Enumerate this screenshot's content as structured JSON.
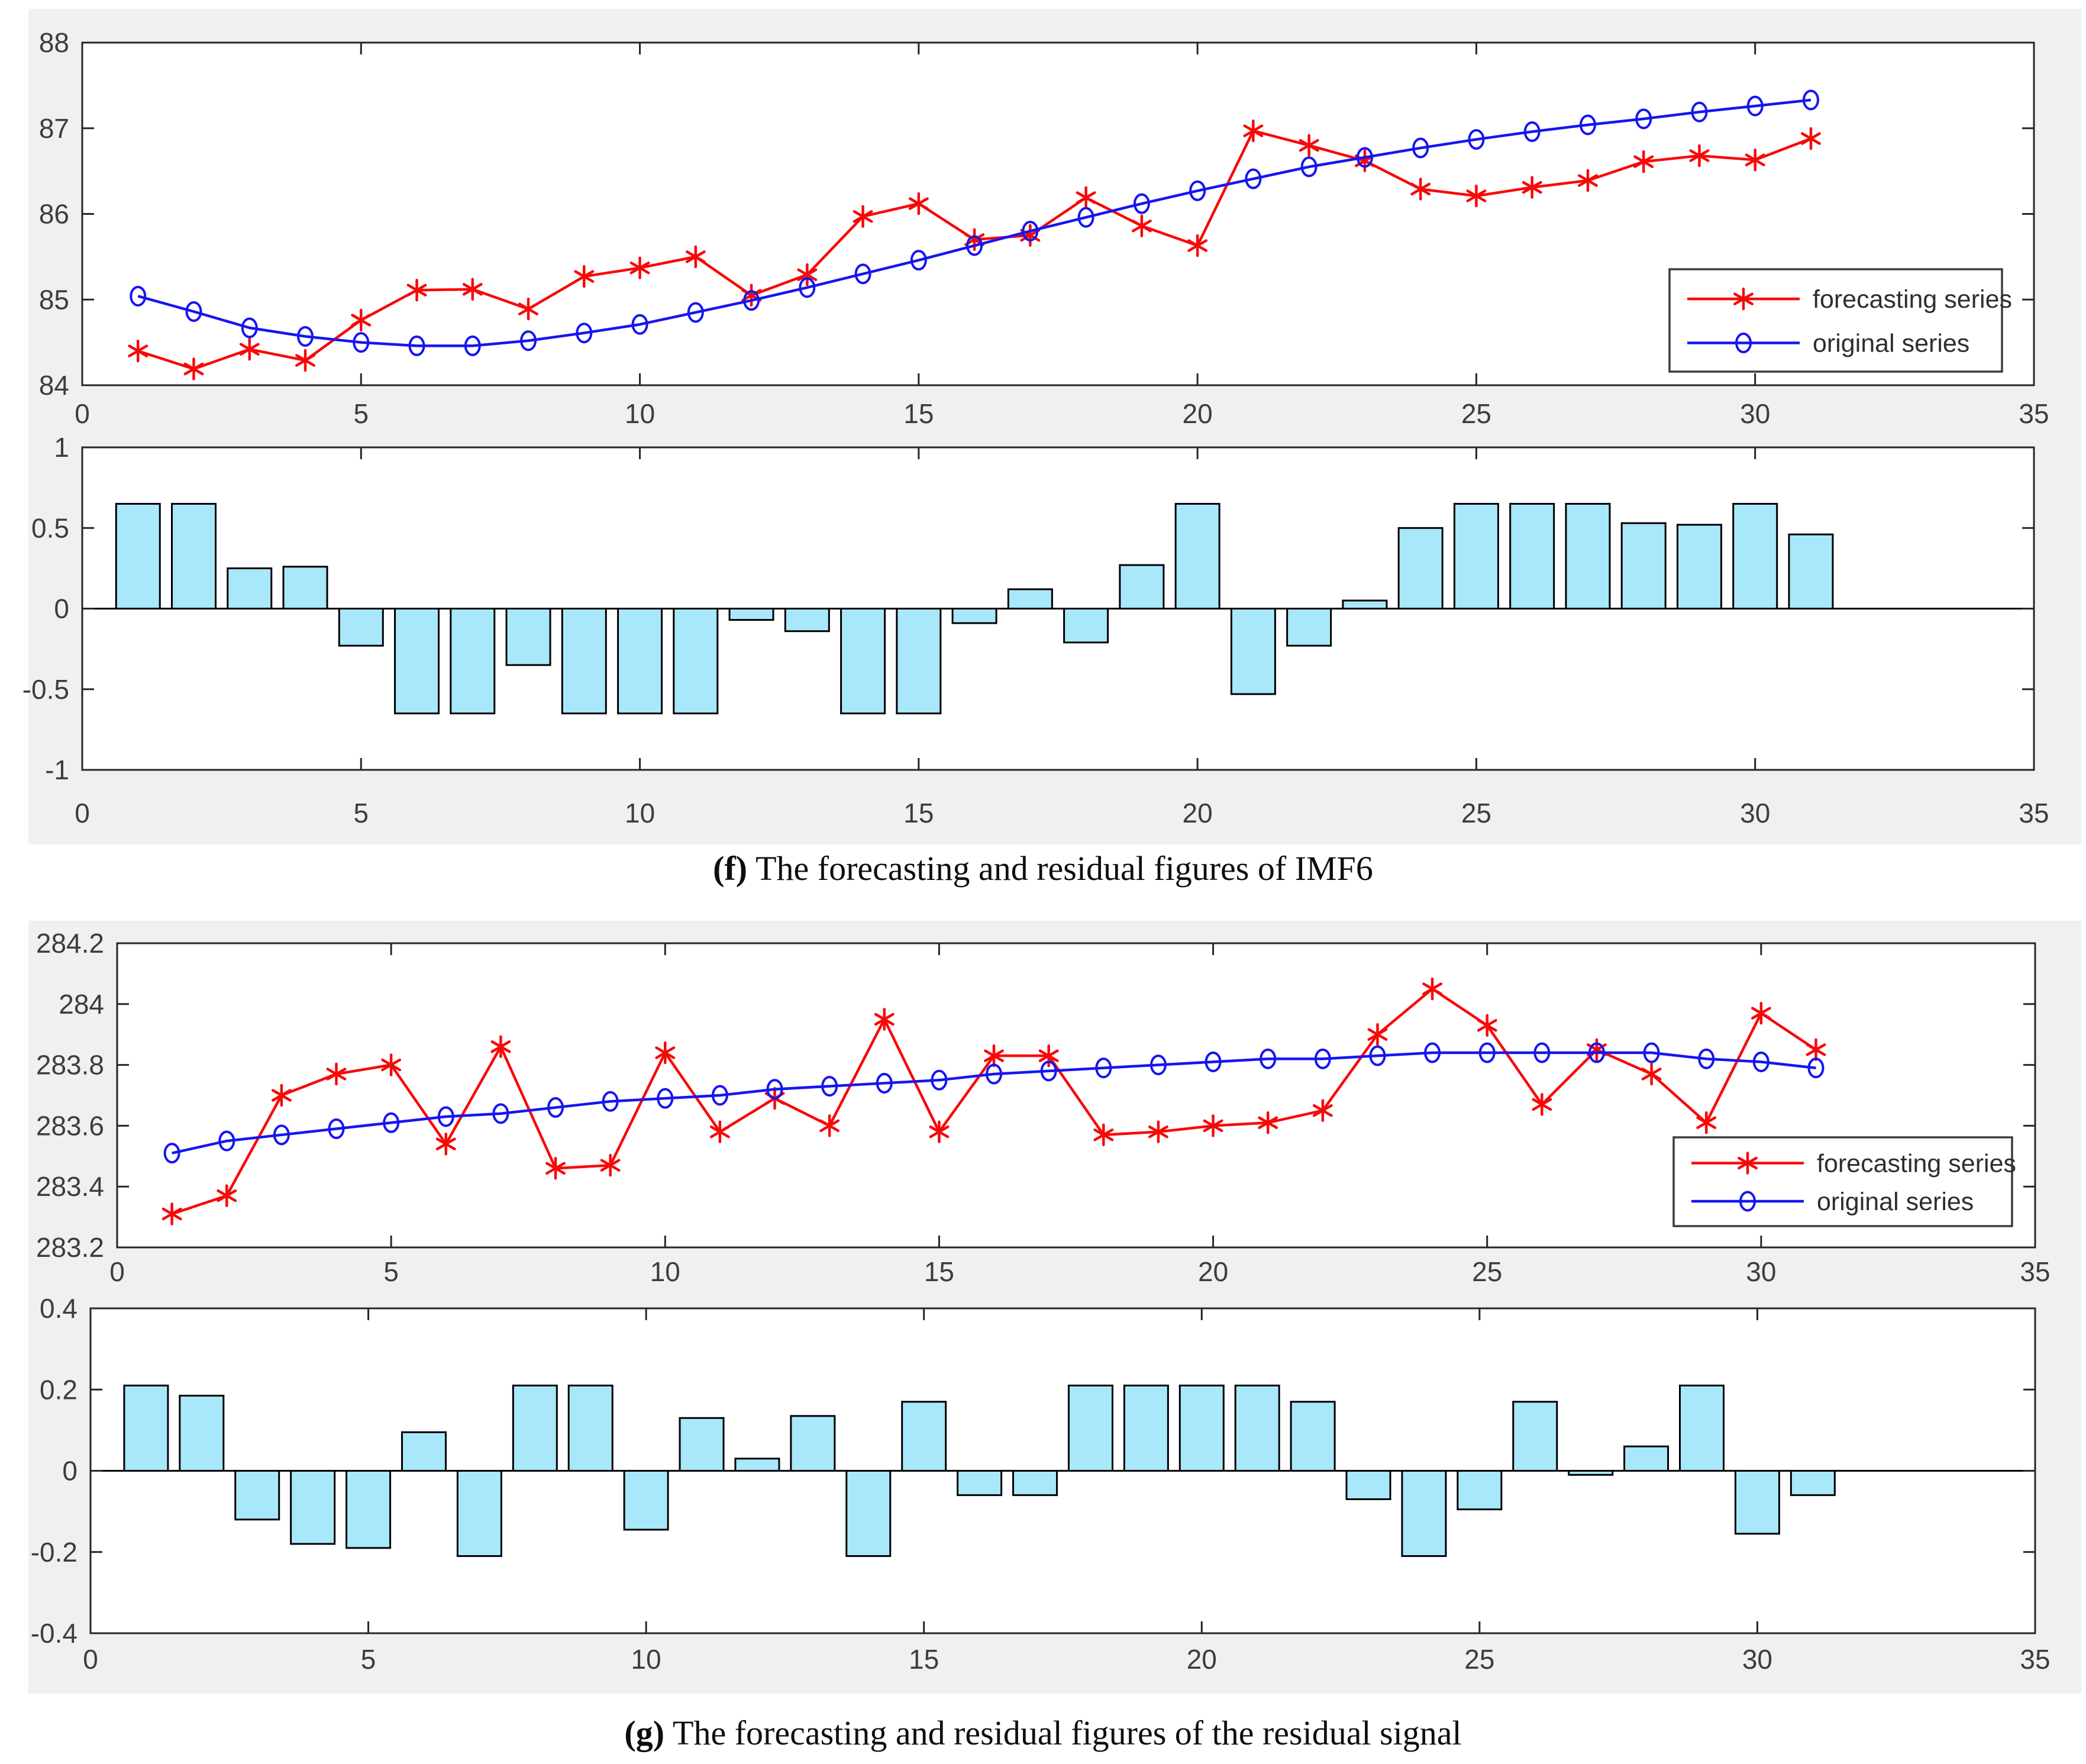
{
  "colors": {
    "forecasting_series": "#f80909",
    "original_series": "#1515f2",
    "residual_bar_fill": "#a9e7fa",
    "bar_edge": "#000000",
    "panel_background": "#f0f0f0",
    "plot_background": "#ffffff",
    "axis_frame": "#262626",
    "tick_label": "#3d3d3d",
    "legend_text": "#2e2e2e",
    "caption_text": "#0e0e0e"
  },
  "figures": [
    {
      "id": "f",
      "caption_label": "(f)",
      "caption_text": "The forecasting and residual figures of IMF6"
    },
    {
      "id": "g",
      "caption_label": "(g)",
      "caption_text": "The forecasting and residual figures of the residual signal"
    }
  ],
  "chart_data": [
    {
      "id": "f_line",
      "figure": "f",
      "type": "line",
      "x_start": 1,
      "x_step": 1,
      "xlim": [
        0,
        35
      ],
      "ylim": [
        84,
        88
      ],
      "xticks": [
        "0",
        "5",
        "10",
        "15",
        "20",
        "25",
        "30",
        "35"
      ],
      "yticks": [
        "84",
        "85",
        "86",
        "87",
        "88"
      ],
      "grid": false,
      "legend_position": "right-inside",
      "series": [
        {
          "name": "forecasting series",
          "marker": "asterisk",
          "color_key": "forecasting_series",
          "values": [
            84.4,
            84.19,
            84.42,
            84.29,
            84.76,
            85.11,
            85.12,
            84.89,
            85.27,
            85.37,
            85.5,
            85.05,
            85.29,
            85.97,
            86.12,
            85.7,
            85.75,
            86.19,
            85.86,
            85.63,
            86.97,
            86.8,
            86.62,
            86.29,
            86.21,
            86.31,
            86.39,
            86.61,
            86.68,
            86.63,
            86.88
          ]
        },
        {
          "name": "original series",
          "marker": "circle",
          "color_key": "original_series",
          "values": [
            85.04,
            84.86,
            84.67,
            84.57,
            84.5,
            84.46,
            84.46,
            84.52,
            84.61,
            84.71,
            84.85,
            84.99,
            85.14,
            85.3,
            85.46,
            85.63,
            85.8,
            85.96,
            86.12,
            86.27,
            86.41,
            86.55,
            86.66,
            86.77,
            86.87,
            86.96,
            87.04,
            87.11,
            87.19,
            87.26,
            87.33
          ]
        }
      ]
    },
    {
      "id": "f_bar",
      "figure": "f",
      "type": "bar",
      "x_start": 1,
      "x_step": 1,
      "xlim": [
        0,
        35
      ],
      "ylim": [
        -1,
        1
      ],
      "xticks": [
        "0",
        "5",
        "10",
        "15",
        "20",
        "25",
        "30",
        "35"
      ],
      "yticks": [
        "-1",
        "-0.5",
        "0",
        "0.5",
        "1"
      ],
      "grid": false,
      "color_key": "residual_bar_fill",
      "values": [
        0.65,
        0.65,
        0.25,
        0.26,
        -0.23,
        -0.65,
        -0.65,
        -0.35,
        -0.65,
        -0.65,
        -0.65,
        -0.07,
        -0.14,
        -0.65,
        -0.65,
        -0.09,
        0.12,
        -0.21,
        0.27,
        0.65,
        -0.53,
        -0.23,
        0.05,
        0.5,
        0.65,
        0.65,
        0.65,
        0.53,
        0.52,
        0.65,
        0.46
      ]
    },
    {
      "id": "g_line",
      "figure": "g",
      "type": "line",
      "x_start": 1,
      "x_step": 1,
      "xlim": [
        0,
        35
      ],
      "ylim": [
        283.2,
        284.2
      ],
      "xticks": [
        "0",
        "5",
        "10",
        "15",
        "20",
        "25",
        "30",
        "35"
      ],
      "yticks": [
        "283.2",
        "283.4",
        "283.6",
        "283.8",
        "284",
        "284.2"
      ],
      "grid": false,
      "legend_position": "lower-right-inside",
      "series": [
        {
          "name": "forecasting series",
          "marker": "asterisk",
          "color_key": "forecasting_series",
          "values": [
            283.31,
            283.37,
            283.7,
            283.77,
            283.8,
            283.54,
            283.86,
            283.46,
            283.47,
            283.84,
            283.58,
            283.69,
            283.6,
            283.95,
            283.58,
            283.83,
            283.83,
            283.57,
            283.58,
            283.6,
            283.61,
            283.65,
            283.9,
            284.05,
            283.93,
            283.67,
            283.85,
            283.77,
            283.61,
            283.97,
            283.85
          ]
        },
        {
          "name": "original series",
          "marker": "circle",
          "color_key": "original_series",
          "values": [
            283.51,
            283.55,
            283.57,
            283.59,
            283.61,
            283.63,
            283.64,
            283.66,
            283.68,
            283.69,
            283.7,
            283.72,
            283.73,
            283.74,
            283.75,
            283.77,
            283.78,
            283.79,
            283.8,
            283.81,
            283.82,
            283.82,
            283.83,
            283.84,
            283.84,
            283.84,
            283.84,
            283.84,
            283.82,
            283.81,
            283.79
          ]
        }
      ]
    },
    {
      "id": "g_bar",
      "figure": "g",
      "type": "bar",
      "x_start": 1,
      "x_step": 1,
      "xlim": [
        0,
        35
      ],
      "ylim": [
        -0.4,
        0.4
      ],
      "xticks": [
        "0",
        "5",
        "10",
        "15",
        "20",
        "25",
        "30",
        "35"
      ],
      "yticks": [
        "-0.4",
        "-0.2",
        "0",
        "0.2",
        "0.4"
      ],
      "grid": false,
      "color_key": "residual_bar_fill",
      "values": [
        0.21,
        0.185,
        -0.12,
        -0.18,
        -0.19,
        0.095,
        -0.21,
        0.21,
        0.21,
        -0.145,
        0.13,
        0.03,
        0.135,
        -0.21,
        0.17,
        -0.06,
        -0.06,
        0.21,
        0.21,
        0.21,
        0.21,
        0.17,
        -0.07,
        -0.21,
        -0.095,
        0.17,
        -0.01,
        0.06,
        0.21,
        -0.155,
        -0.06
      ]
    }
  ]
}
